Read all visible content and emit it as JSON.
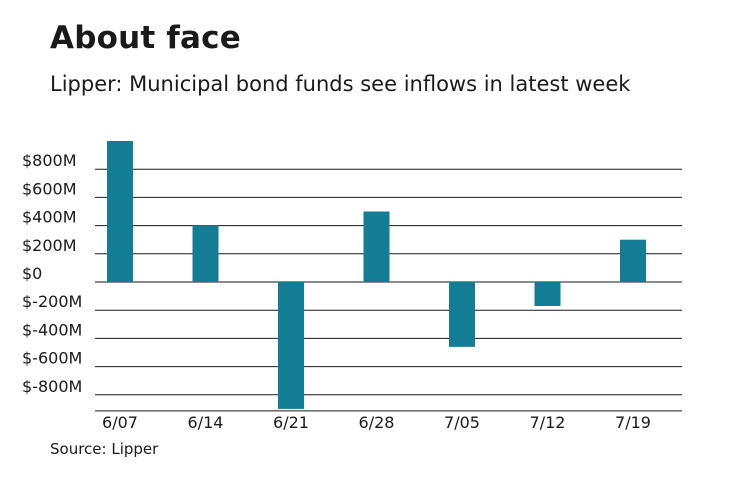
{
  "header": {
    "title": "About face",
    "subtitle": "Lipper: Municipal bond funds see inflows in latest week"
  },
  "footer": {
    "source": "Source: Lipper"
  },
  "colors": {
    "bar": "#137d96",
    "grid": "#1a1a1a"
  },
  "chart_data": {
    "type": "bar",
    "title": "About face",
    "subtitle": "Lipper: Municipal bond funds see inflows in latest week",
    "categories": [
      "6/07",
      "6/14",
      "6/21",
      "6/28",
      "7/05",
      "7/12",
      "7/19"
    ],
    "values": [
      1000,
      400,
      -900,
      500,
      -460,
      -170,
      300
    ],
    "y_ticks": [
      800,
      600,
      400,
      200,
      0,
      -200,
      -400,
      -600,
      -800
    ],
    "y_tick_labels": [
      "$800M",
      "$600M",
      "$400M",
      "$200M",
      "$0",
      "$-200M",
      "$-400M",
      "$-600M",
      "$-800M"
    ],
    "ylim": [
      -900,
      1000
    ],
    "xlabel": "",
    "ylabel": "",
    "grid": true,
    "legend": "none"
  }
}
